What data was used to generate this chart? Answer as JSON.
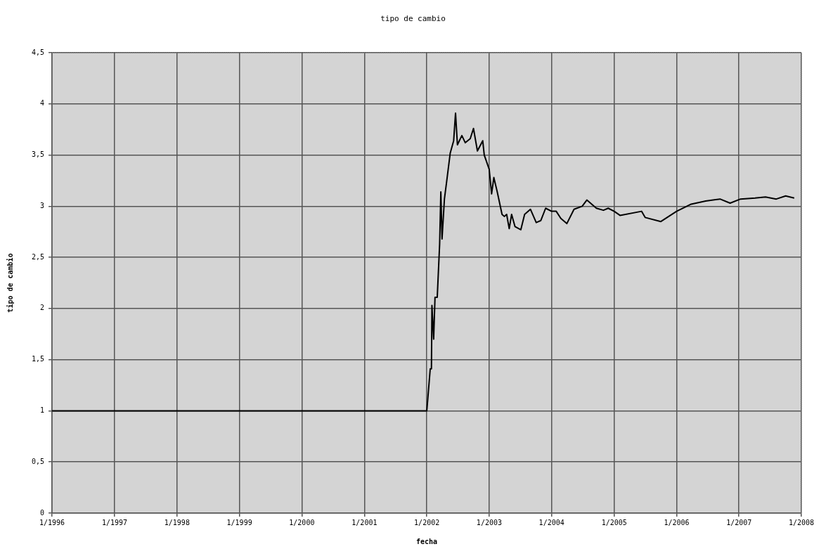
{
  "chart_data": {
    "type": "line",
    "title": "tipo de cambio",
    "xlabel": "fecha",
    "ylabel": "tipo de cambio",
    "x": [
      "1996-01-01",
      "2002-01-01",
      "2002-01-21",
      "2002-01-28",
      "2002-01-31",
      "2002-02-10",
      "2002-02-18",
      "2002-03-03",
      "2002-03-17",
      "2002-03-24",
      "2002-03-31",
      "2002-04-14",
      "2002-04-27",
      "2002-05-18",
      "2002-06-07",
      "2002-06-18",
      "2002-06-29",
      "2002-07-25",
      "2002-08-14",
      "2002-09-12",
      "2002-10-01",
      "2002-10-24",
      "2002-11-24",
      "2002-12-03",
      "2003-01-01",
      "2003-01-15",
      "2003-01-28",
      "2003-02-17",
      "2003-03-17",
      "2003-03-30",
      "2003-04-13",
      "2003-04-28",
      "2003-05-12",
      "2003-06-01",
      "2003-07-05",
      "2003-07-27",
      "2003-08-30",
      "2003-10-03",
      "2003-10-30",
      "2003-11-27",
      "2004-01-01",
      "2004-01-28",
      "2004-02-24",
      "2004-03-30",
      "2004-05-11",
      "2004-06-28",
      "2004-07-25",
      "2004-09-19",
      "2004-10-30",
      "2004-11-27",
      "2005-01-01",
      "2005-02-04",
      "2005-06-10",
      "2005-07-01",
      "2005-10-01",
      "2006-01-01",
      "2006-03-27",
      "2006-06-20",
      "2006-09-12",
      "2006-11-10",
      "2007-01-10",
      "2007-04-05",
      "2007-06-05",
      "2007-08-07",
      "2007-10-01",
      "2007-11-20"
    ],
    "series": [
      {
        "color": "#000000",
        "values": [
          1,
          1,
          1.41,
          1.41,
          2.03,
          1.7,
          2.11,
          2.11,
          2.63,
          3.14,
          2.68,
          3.07,
          3.24,
          3.52,
          3.64,
          3.91,
          3.6,
          3.69,
          3.62,
          3.66,
          3.76,
          3.54,
          3.64,
          3.5,
          3.36,
          3.12,
          3.28,
          3.14,
          2.92,
          2.9,
          2.92,
          2.78,
          2.92,
          2.8,
          2.77,
          2.92,
          2.97,
          2.84,
          2.86,
          2.98,
          2.95,
          2.95,
          2.88,
          2.83,
          2.97,
          3.0,
          3.06,
          2.98,
          2.96,
          2.98,
          2.95,
          2.91,
          2.95,
          2.89,
          2.85,
          2.95,
          3.02,
          3.05,
          3.07,
          3.03,
          3.07,
          3.08,
          3.09,
          3.07,
          3.1,
          3.08
        ]
      }
    ],
    "xlim": [
      "1996-01-01",
      "2008-01-01"
    ],
    "xticks": [
      {
        "value": "1996-01-01",
        "label": "1/1996"
      },
      {
        "value": "1997-01-01",
        "label": "1/1997"
      },
      {
        "value": "1998-01-01",
        "label": "1/1998"
      },
      {
        "value": "1999-01-01",
        "label": "1/1999"
      },
      {
        "value": "2000-01-01",
        "label": "1/2000"
      },
      {
        "value": "2001-01-01",
        "label": "1/2001"
      },
      {
        "value": "2002-01-01",
        "label": "1/2002"
      },
      {
        "value": "2003-01-01",
        "label": "1/2003"
      },
      {
        "value": "2004-01-01",
        "label": "1/2004"
      },
      {
        "value": "2005-01-01",
        "label": "1/2005"
      },
      {
        "value": "2006-01-01",
        "label": "1/2006"
      },
      {
        "value": "2007-01-01",
        "label": "1/2007"
      },
      {
        "value": "2008-01-01",
        "label": "1/2008"
      }
    ],
    "ylim": [
      0,
      4.5
    ],
    "yticks": [
      0,
      {
        "value": 0.5,
        "label": "0,5"
      },
      1,
      {
        "value": 1.5,
        "label": "1,5"
      },
      2,
      {
        "value": 2.5,
        "label": "2,5"
      },
      3,
      {
        "value": 3.5,
        "label": "3,5"
      },
      4,
      {
        "value": 4.5,
        "label": "4,5"
      }
    ],
    "grid": true,
    "legend": false,
    "marker": "none",
    "line_style": "solid"
  }
}
